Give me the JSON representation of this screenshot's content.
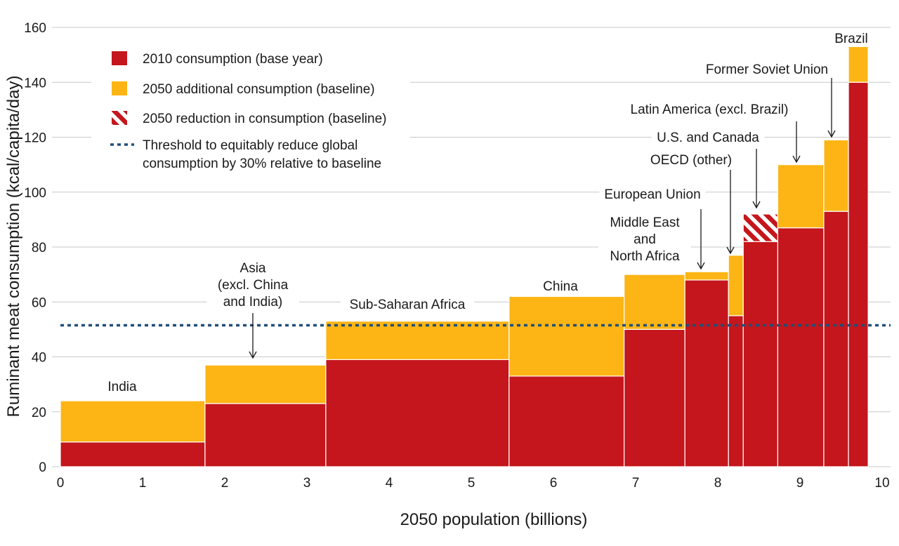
{
  "chart_data": {
    "type": "bar",
    "subtype": "variable-width stacked bar (marimekko)",
    "xlabel": "2050 population (billions)",
    "ylabel": "Ruminant meat consumption (kcal/capita/day)",
    "xlim": [
      0,
      10
    ],
    "ylim": [
      0,
      160
    ],
    "x_ticks": [
      "0",
      "1",
      "2",
      "3",
      "4",
      "5",
      "6",
      "7",
      "8",
      "9",
      "10"
    ],
    "y_ticks": [
      "0",
      "20",
      "40",
      "60",
      "80",
      "100",
      "120",
      "140",
      "160"
    ],
    "grid": "horizontal",
    "legend_position": "top-left",
    "legend": [
      {
        "key": "base",
        "label": "2010 consumption (base year)",
        "kind": "solid",
        "color": "#c4161c"
      },
      {
        "key": "add",
        "label": "2050 additional consumption (baseline)",
        "kind": "solid",
        "color": "#fdb515"
      },
      {
        "key": "red",
        "label": "2050 reduction in consumption (baseline)",
        "kind": "hatch",
        "color": "#c4161c"
      },
      {
        "key": "threshold",
        "label": "Threshold to equitably reduce global consumption by 30% relative to baseline",
        "label_lines": [
          "Threshold to equitably reduce global",
          "consumption by 30% relative to baseline"
        ],
        "kind": "dotted-line",
        "color": "#1f4e79"
      }
    ],
    "threshold": 51.5,
    "regions": [
      {
        "name": "India",
        "label_lines": [
          "India"
        ],
        "x0": 0.0,
        "x1": 1.76,
        "base_2010": 9,
        "additional_2050": 15,
        "reduction_2050": 0
      },
      {
        "name": "Asia (excl. China and India)",
        "label_lines": [
          "Asia",
          "(excl. China",
          "and India)"
        ],
        "x0": 1.76,
        "x1": 3.23,
        "base_2010": 23,
        "additional_2050": 14,
        "reduction_2050": 0
      },
      {
        "name": "Sub-Saharan Africa",
        "label_lines": [
          "Sub-Saharan Africa"
        ],
        "x0": 3.23,
        "x1": 5.46,
        "base_2010": 39,
        "additional_2050": 14,
        "reduction_2050": 0
      },
      {
        "name": "China",
        "label_lines": [
          "China"
        ],
        "x0": 5.46,
        "x1": 6.86,
        "base_2010": 33,
        "additional_2050": 29,
        "reduction_2050": 0
      },
      {
        "name": "Middle East and North Africa",
        "label_lines": [
          "Middle East",
          "and",
          "North Africa"
        ],
        "x0": 6.86,
        "x1": 7.6,
        "base_2010": 50,
        "additional_2050": 20,
        "reduction_2050": 0
      },
      {
        "name": "European Union",
        "label_lines": [
          "European Union"
        ],
        "x0": 7.6,
        "x1": 8.13,
        "base_2010": 68,
        "additional_2050": 3,
        "reduction_2050": 0
      },
      {
        "name": "OECD (other)",
        "label_lines": [
          "OECD (other)"
        ],
        "x0": 8.13,
        "x1": 8.31,
        "base_2010": 55,
        "additional_2050": 22,
        "reduction_2050": 0
      },
      {
        "name": "U.S. and Canada",
        "label_lines": [
          "U.S. and Canada"
        ],
        "x0": 8.31,
        "x1": 8.73,
        "base_2010": 82,
        "additional_2050": 0,
        "reduction_2050": 10
      },
      {
        "name": "Latin America (excl. Brazil)",
        "label_lines": [
          "Latin America (excl. Brazil)"
        ],
        "x0": 8.73,
        "x1": 9.29,
        "base_2010": 87,
        "additional_2050": 23,
        "reduction_2050": 0
      },
      {
        "name": "Former Soviet Union",
        "label_lines": [
          "Former Soviet Union"
        ],
        "x0": 9.29,
        "x1": 9.59,
        "base_2010": 93,
        "additional_2050": 26,
        "reduction_2050": 0
      },
      {
        "name": "Brazil",
        "label_lines": [
          "Brazil"
        ],
        "x0": 9.59,
        "x1": 9.83,
        "base_2010": 140,
        "additional_2050": 13,
        "reduction_2050": 0
      }
    ]
  }
}
